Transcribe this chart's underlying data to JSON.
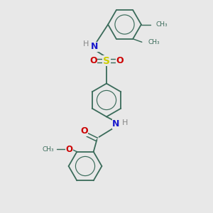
{
  "bg_color": "#e8e8e8",
  "bond_color": "#3a6b5a",
  "atom_colors": {
    "N": "#1a1acc",
    "O": "#cc0000",
    "S": "#cccc00",
    "H": "#888888",
    "C": "#3a6b5a"
  },
  "figsize": [
    3.0,
    3.0
  ],
  "dpi": 100,
  "xlim": [
    0,
    10
  ],
  "ylim": [
    0,
    10
  ],
  "ring_r": 0.78,
  "lw": 1.3
}
